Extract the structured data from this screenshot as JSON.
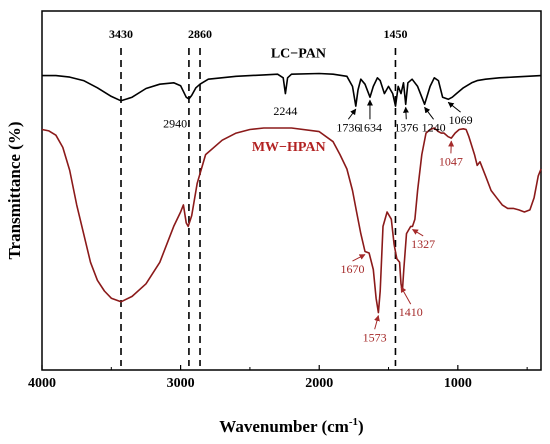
{
  "chart_data": {
    "type": "line",
    "title": "",
    "xlabel": "Wavenumber (cm",
    "xlabel_sup": "-1",
    "xlabel_close": ")",
    "ylabel": "Transmittance (%)",
    "xlim": [
      4000,
      400
    ],
    "ylim": [
      0,
      100
    ],
    "x_reversed": true,
    "x_ticks": [
      4000,
      3000,
      2000,
      1000
    ],
    "x_tick_labels": [
      "4000",
      "3000",
      "2000",
      "1000"
    ],
    "grid": false,
    "legend": "none",
    "series": [
      {
        "name": "LC−PAN",
        "color": "#000000",
        "points": [
          [
            4000,
            82
          ],
          [
            3900,
            82
          ],
          [
            3800,
            81.6
          ],
          [
            3700,
            80.6
          ],
          [
            3600,
            78.6
          ],
          [
            3500,
            76.2
          ],
          [
            3430,
            75
          ],
          [
            3350,
            76
          ],
          [
            3250,
            78.4
          ],
          [
            3150,
            79.6
          ],
          [
            3050,
            80
          ],
          [
            3000,
            79.2
          ],
          [
            2960,
            76
          ],
          [
            2940,
            75.5
          ],
          [
            2920,
            76.5
          ],
          [
            2890,
            78.6
          ],
          [
            2860,
            79.6
          ],
          [
            2800,
            81
          ],
          [
            2600,
            81.8
          ],
          [
            2400,
            82.2
          ],
          [
            2300,
            82.4
          ],
          [
            2260,
            81.4
          ],
          [
            2244,
            77
          ],
          [
            2228,
            81.4
          ],
          [
            2200,
            82.4
          ],
          [
            2000,
            82.6
          ],
          [
            1900,
            82.4
          ],
          [
            1800,
            81.8
          ],
          [
            1760,
            79
          ],
          [
            1736,
            73.5
          ],
          [
            1720,
            78
          ],
          [
            1700,
            81
          ],
          [
            1670,
            79.6
          ],
          [
            1634,
            76
          ],
          [
            1610,
            79
          ],
          [
            1580,
            81.4
          ],
          [
            1560,
            80.6
          ],
          [
            1530,
            77
          ],
          [
            1500,
            79
          ],
          [
            1470,
            77
          ],
          [
            1450,
            73.5
          ],
          [
            1430,
            79
          ],
          [
            1410,
            77
          ],
          [
            1392,
            80
          ],
          [
            1376,
            74
          ],
          [
            1360,
            80
          ],
          [
            1330,
            81
          ],
          [
            1290,
            79
          ],
          [
            1240,
            74
          ],
          [
            1200,
            79
          ],
          [
            1170,
            81.4
          ],
          [
            1140,
            80.6
          ],
          [
            1110,
            76
          ],
          [
            1069,
            75.4
          ],
          [
            1040,
            76
          ],
          [
            1010,
            77
          ],
          [
            960,
            78.6
          ],
          [
            900,
            80
          ],
          [
            860,
            80.6
          ],
          [
            800,
            81
          ],
          [
            700,
            81.4
          ],
          [
            600,
            81.6
          ],
          [
            500,
            81.8
          ],
          [
            400,
            82
          ]
        ]
      },
      {
        "name": "MW−HPAN",
        "color": "#8b1a1a",
        "points": [
          [
            4000,
            67
          ],
          [
            3950,
            66.6
          ],
          [
            3900,
            65.4
          ],
          [
            3850,
            62
          ],
          [
            3800,
            55.6
          ],
          [
            3750,
            46
          ],
          [
            3700,
            38
          ],
          [
            3650,
            30
          ],
          [
            3600,
            25
          ],
          [
            3550,
            22
          ],
          [
            3500,
            20
          ],
          [
            3430,
            19
          ],
          [
            3350,
            20.5
          ],
          [
            3250,
            24
          ],
          [
            3150,
            30
          ],
          [
            3050,
            40
          ],
          [
            3000,
            44
          ],
          [
            2980,
            46
          ],
          [
            2960,
            41
          ],
          [
            2945,
            40
          ],
          [
            2920,
            43
          ],
          [
            2880,
            52
          ],
          [
            2820,
            60
          ],
          [
            2700,
            64
          ],
          [
            2600,
            66
          ],
          [
            2500,
            67
          ],
          [
            2400,
            67.4
          ],
          [
            2200,
            67.4
          ],
          [
            2000,
            66.4
          ],
          [
            1900,
            63.6
          ],
          [
            1850,
            60
          ],
          [
            1800,
            56
          ],
          [
            1760,
            50
          ],
          [
            1730,
            44
          ],
          [
            1700,
            38
          ],
          [
            1670,
            33
          ],
          [
            1640,
            32.6
          ],
          [
            1610,
            28
          ],
          [
            1590,
            20
          ],
          [
            1573,
            16
          ],
          [
            1560,
            22
          ],
          [
            1540,
            40
          ],
          [
            1510,
            44
          ],
          [
            1480,
            42
          ],
          [
            1460,
            35
          ],
          [
            1440,
            31
          ],
          [
            1420,
            30
          ],
          [
            1410,
            24
          ],
          [
            1400,
            22
          ],
          [
            1390,
            28
          ],
          [
            1370,
            38
          ],
          [
            1340,
            40
          ],
          [
            1327,
            40
          ],
          [
            1310,
            42
          ],
          [
            1290,
            50
          ],
          [
            1260,
            60
          ],
          [
            1230,
            66
          ],
          [
            1200,
            67
          ],
          [
            1170,
            67.4
          ],
          [
            1140,
            66.4
          ],
          [
            1120,
            66
          ],
          [
            1100,
            66
          ],
          [
            1070,
            65
          ],
          [
            1047,
            64.6
          ],
          [
            1020,
            66
          ],
          [
            990,
            67
          ],
          [
            960,
            67.2
          ],
          [
            940,
            67
          ],
          [
            920,
            65
          ],
          [
            880,
            60
          ],
          [
            860,
            57
          ],
          [
            840,
            58
          ],
          [
            800,
            54
          ],
          [
            760,
            50
          ],
          [
            720,
            48
          ],
          [
            680,
            46
          ],
          [
            640,
            45
          ],
          [
            600,
            45
          ],
          [
            560,
            44.6
          ],
          [
            520,
            44
          ],
          [
            480,
            44.6
          ],
          [
            450,
            48
          ],
          [
            420,
            54
          ],
          [
            400,
            56
          ]
        ]
      }
    ],
    "series_labels": [
      {
        "text": "LC−PAN",
        "x": 2150,
        "y": 87,
        "color": "#000000"
      },
      {
        "text": "MW−HPAN",
        "x": 2220,
        "y": 61,
        "color": "#b22222"
      }
    ],
    "reference_lines": [
      {
        "x": 3430,
        "label": "3430"
      },
      {
        "x": 2940,
        "label": ""
      },
      {
        "x": 2860,
        "label": "2860"
      },
      {
        "x": 1450,
        "label": "1450"
      }
    ],
    "peak_labels_black": [
      {
        "text": "2940",
        "x": 2940,
        "y": 75.5,
        "lx": 3040,
        "ly": 67.5,
        "arrow": false
      },
      {
        "text": "2244",
        "x": 2244,
        "y": 77,
        "lx": 2244,
        "ly": 71,
        "arrow": false
      },
      {
        "text": "1736",
        "x": 1736,
        "y": 73.5,
        "lx": 1790,
        "ly": 66.5,
        "arrow": true
      },
      {
        "text": "1634",
        "x": 1634,
        "y": 76,
        "lx": 1634,
        "ly": 66.5,
        "arrow": true
      },
      {
        "text": "1376",
        "x": 1376,
        "y": 74,
        "lx": 1372,
        "ly": 66.5,
        "arrow": true
      },
      {
        "text": "1240",
        "x": 1240,
        "y": 74,
        "lx": 1175,
        "ly": 66.5,
        "arrow": true
      },
      {
        "text": "1069",
        "x": 1069,
        "y": 75.4,
        "lx": 980,
        "ly": 68.5,
        "arrow": true
      }
    ],
    "peak_labels_red": [
      {
        "text": "1670",
        "x": 1670,
        "y": 33,
        "lx": 1760,
        "ly": 27,
        "arrow": true
      },
      {
        "text": "1573",
        "x": 1573,
        "y": 16,
        "lx": 1600,
        "ly": 8,
        "arrow": true
      },
      {
        "text": "1410",
        "x": 1410,
        "y": 24,
        "lx": 1340,
        "ly": 15,
        "arrow": true
      },
      {
        "text": "1327",
        "x": 1327,
        "y": 40,
        "lx": 1250,
        "ly": 34,
        "arrow": true
      },
      {
        "text": "1047",
        "x": 1047,
        "y": 64.6,
        "lx": 1050,
        "ly": 57,
        "arrow": true
      }
    ]
  }
}
